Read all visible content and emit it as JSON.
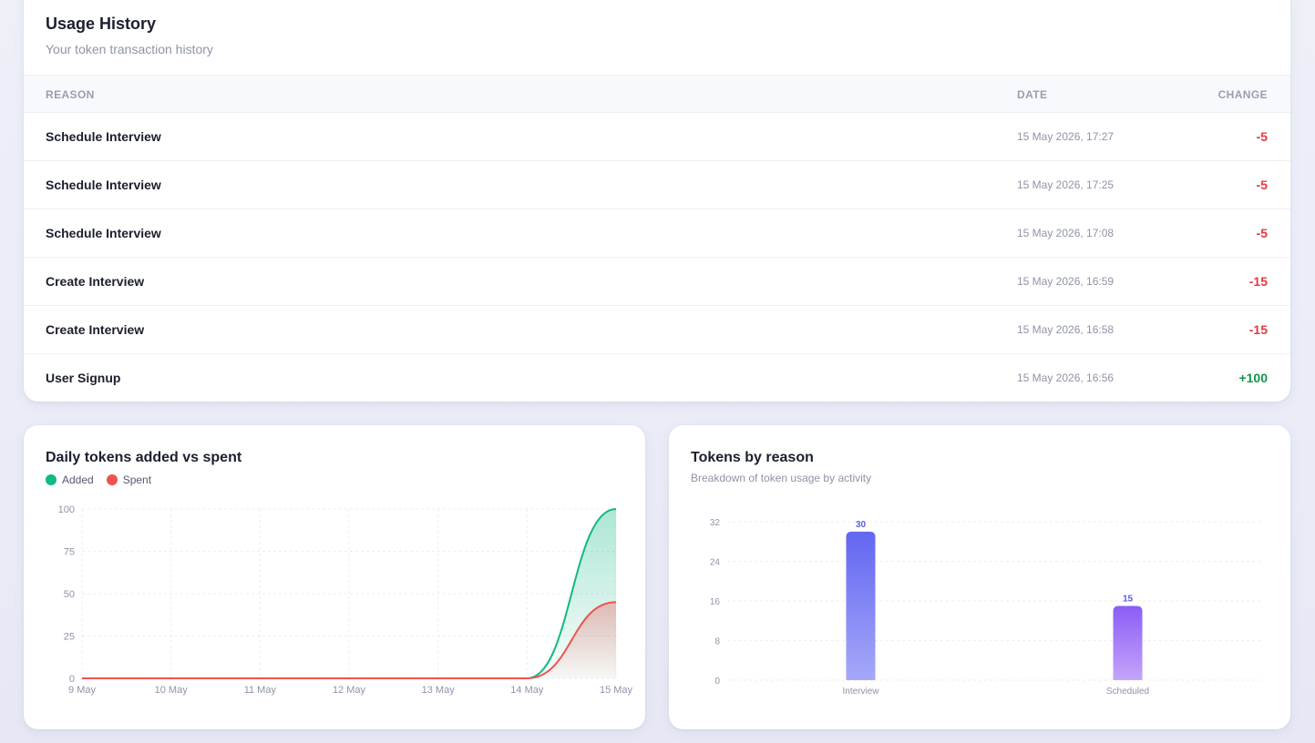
{
  "usage": {
    "title": "Usage History",
    "subtitle": "Your token transaction history",
    "columns": {
      "reason": "REASON",
      "date": "DATE",
      "change": "CHANGE"
    },
    "rows": [
      {
        "reason": "Schedule Interview",
        "date": "15 May 2026, 17:27",
        "change": "-5",
        "type": "neg"
      },
      {
        "reason": "Schedule Interview",
        "date": "15 May 2026, 17:25",
        "change": "-5",
        "type": "neg"
      },
      {
        "reason": "Schedule Interview",
        "date": "15 May 2026, 17:08",
        "change": "-5",
        "type": "neg"
      },
      {
        "reason": "Create Interview",
        "date": "15 May 2026, 16:59",
        "change": "-15",
        "type": "neg"
      },
      {
        "reason": "Create Interview",
        "date": "15 May 2026, 16:58",
        "change": "-15",
        "type": "neg"
      },
      {
        "reason": "User Signup",
        "date": "15 May 2026, 16:56",
        "change": "+100",
        "type": "pos"
      }
    ]
  },
  "colors": {
    "added": "#12b886",
    "spent": "#ef5350",
    "bar_top": "#6366f1",
    "bar_bottom": "#a5a8f8",
    "bar2_top": "#8b5cf6",
    "bar2_bottom": "#c4a5fb",
    "neg": "#e23a45",
    "pos": "#14944f"
  },
  "chart_data": [
    {
      "type": "area",
      "title": "Daily tokens added vs spent",
      "legend_position": "top-left",
      "x": [
        "9 May",
        "10 May",
        "11 May",
        "12 May",
        "13 May",
        "14 May",
        "15 May"
      ],
      "series": [
        {
          "name": "Added",
          "values": [
            0,
            0,
            0,
            0,
            0,
            0,
            100
          ]
        },
        {
          "name": "Spent",
          "values": [
            0,
            0,
            0,
            0,
            0,
            0,
            45
          ]
        }
      ],
      "yticks": [
        0,
        25,
        50,
        75,
        100
      ],
      "ylim": [
        0,
        100
      ],
      "grid": true
    },
    {
      "type": "bar",
      "title": "Tokens by reason",
      "subtitle": "Breakdown of token usage by activity",
      "categories": [
        "Interview",
        "Scheduled"
      ],
      "values": [
        30,
        15
      ],
      "yticks": [
        0,
        8,
        16,
        24,
        32
      ],
      "ylim": [
        0,
        32
      ],
      "grid": true
    }
  ]
}
